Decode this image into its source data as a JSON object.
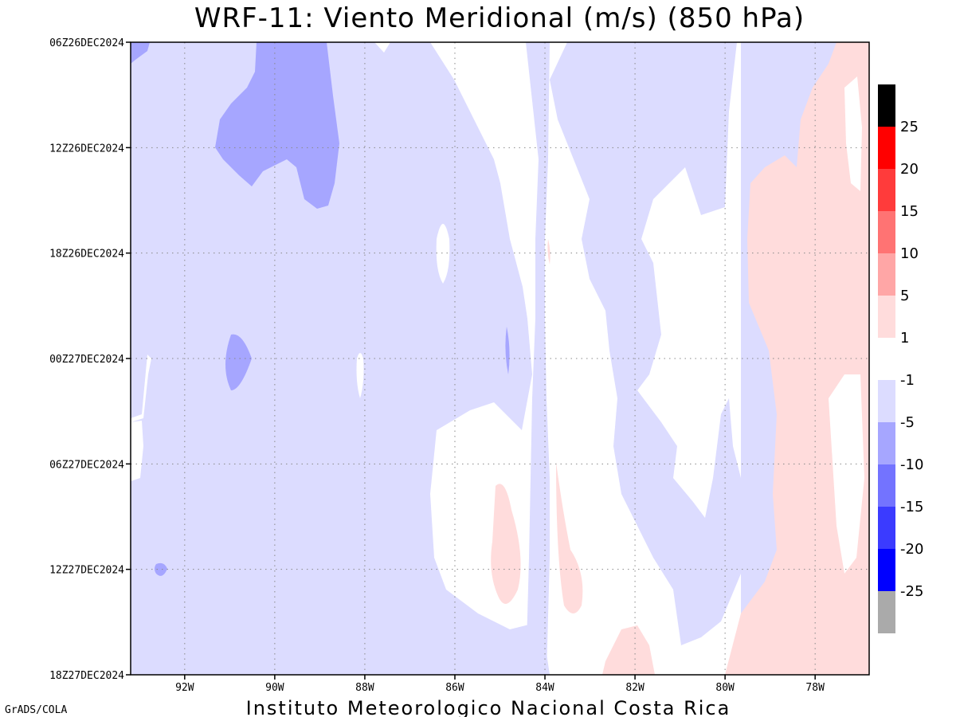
{
  "chart_data": {
    "type": "heatmap",
    "title": "WRF-11: Viento Meridional (m/s) (850 hPa)",
    "x_ticks": [
      "92W",
      "90W",
      "88W",
      "86W",
      "84W",
      "82W",
      "80W",
      "78W"
    ],
    "x_tick_lon": [
      -92,
      -90,
      -88,
      -86,
      -84,
      -82,
      -80,
      -78
    ],
    "xlim": [
      -93.2,
      -76.8
    ],
    "y_ticks": [
      "06Z26DEC2024",
      "12Z26DEC2024",
      "18Z26DEC2024",
      "00Z27DEC2024",
      "06Z27DEC2024",
      "12Z27DEC2024",
      "18Z27DEC2024"
    ],
    "y_tick_hours": [
      0,
      6,
      12,
      18,
      24,
      30,
      36
    ],
    "ylim_hours": [
      0,
      36
    ],
    "grid": true,
    "colorbar": {
      "placement": "right",
      "colors": [
        "#000000",
        "#ff0000",
        "#ff3b3b",
        "#ff7373",
        "#ffa6a6",
        "#ffdcdc",
        "#ffffff",
        "#dcdcff",
        "#a6a6ff",
        "#7373ff",
        "#3b3bff",
        "#0000ff",
        "#aaaaaa"
      ],
      "labels": [
        "25",
        "20",
        "15",
        "10",
        "5",
        "1",
        "-1",
        "-5",
        "-10",
        "-15",
        "-20",
        "-25"
      ]
    },
    "regions": [
      {
        "name": "westerly-light-blue",
        "level": "-1 to -5",
        "color": "#dcdcff",
        "lon": [
          -93.2,
          -84.0
        ],
        "hours": [
          0,
          36
        ]
      },
      {
        "name": "central-blue-band",
        "level": "-1 to -5",
        "color": "#dcdcff",
        "lon": [
          -83.0,
          -80.3
        ],
        "hours": [
          0,
          36
        ]
      },
      {
        "name": "strong-south-core",
        "level": "-5 to -10",
        "color": "#a6a6ff",
        "lon": [
          -91.2,
          -88.7
        ],
        "hours": [
          0,
          9.5
        ]
      },
      {
        "name": "east-positive",
        "level": "1 to 5",
        "color": "#ffdcdc",
        "lon": [
          -79.2,
          -76.8
        ],
        "hours": [
          0,
          36
        ]
      },
      {
        "name": "small-positive-85W",
        "level": "1 to 5",
        "color": "#ffdcdc",
        "lon": [
          -85.0,
          -84.2
        ],
        "hours": [
          24.5,
          32.5
        ]
      },
      {
        "name": "small-positive-82W",
        "level": "1 to 5",
        "color": "#ffdcdc",
        "lon": [
          -82.5,
          -81.5
        ],
        "hours": [
          33.8,
          36
        ]
      }
    ]
  },
  "footer": {
    "left": "GrADS/COLA",
    "center": "Instituto Meteorologico Nacional Costa Rica"
  }
}
